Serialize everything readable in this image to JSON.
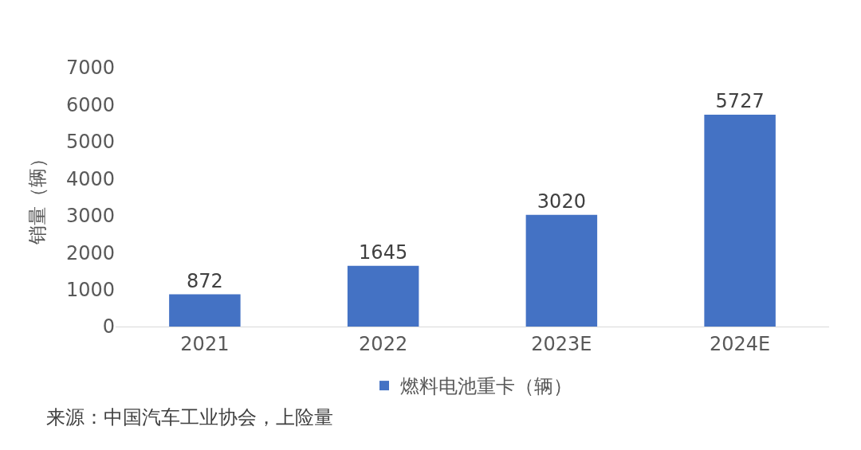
{
  "chart_data": {
    "type": "bar",
    "categories": [
      "2021",
      "2022",
      "2023E",
      "2024E"
    ],
    "series": [
      {
        "name": "燃料电池重卡（辆）",
        "color": "#4472c4",
        "values": [
          872,
          1645,
          3020,
          5727
        ]
      }
    ],
    "ylabel": "销量（辆）",
    "ylim": [
      0,
      7000
    ],
    "yticks": [
      0,
      1000,
      2000,
      3000,
      4000,
      5000,
      6000,
      7000
    ],
    "grid": false,
    "legend": "bottom",
    "data_labels": true,
    "annotations": [
      "来源：中国汽车工业协会，上险量"
    ]
  }
}
